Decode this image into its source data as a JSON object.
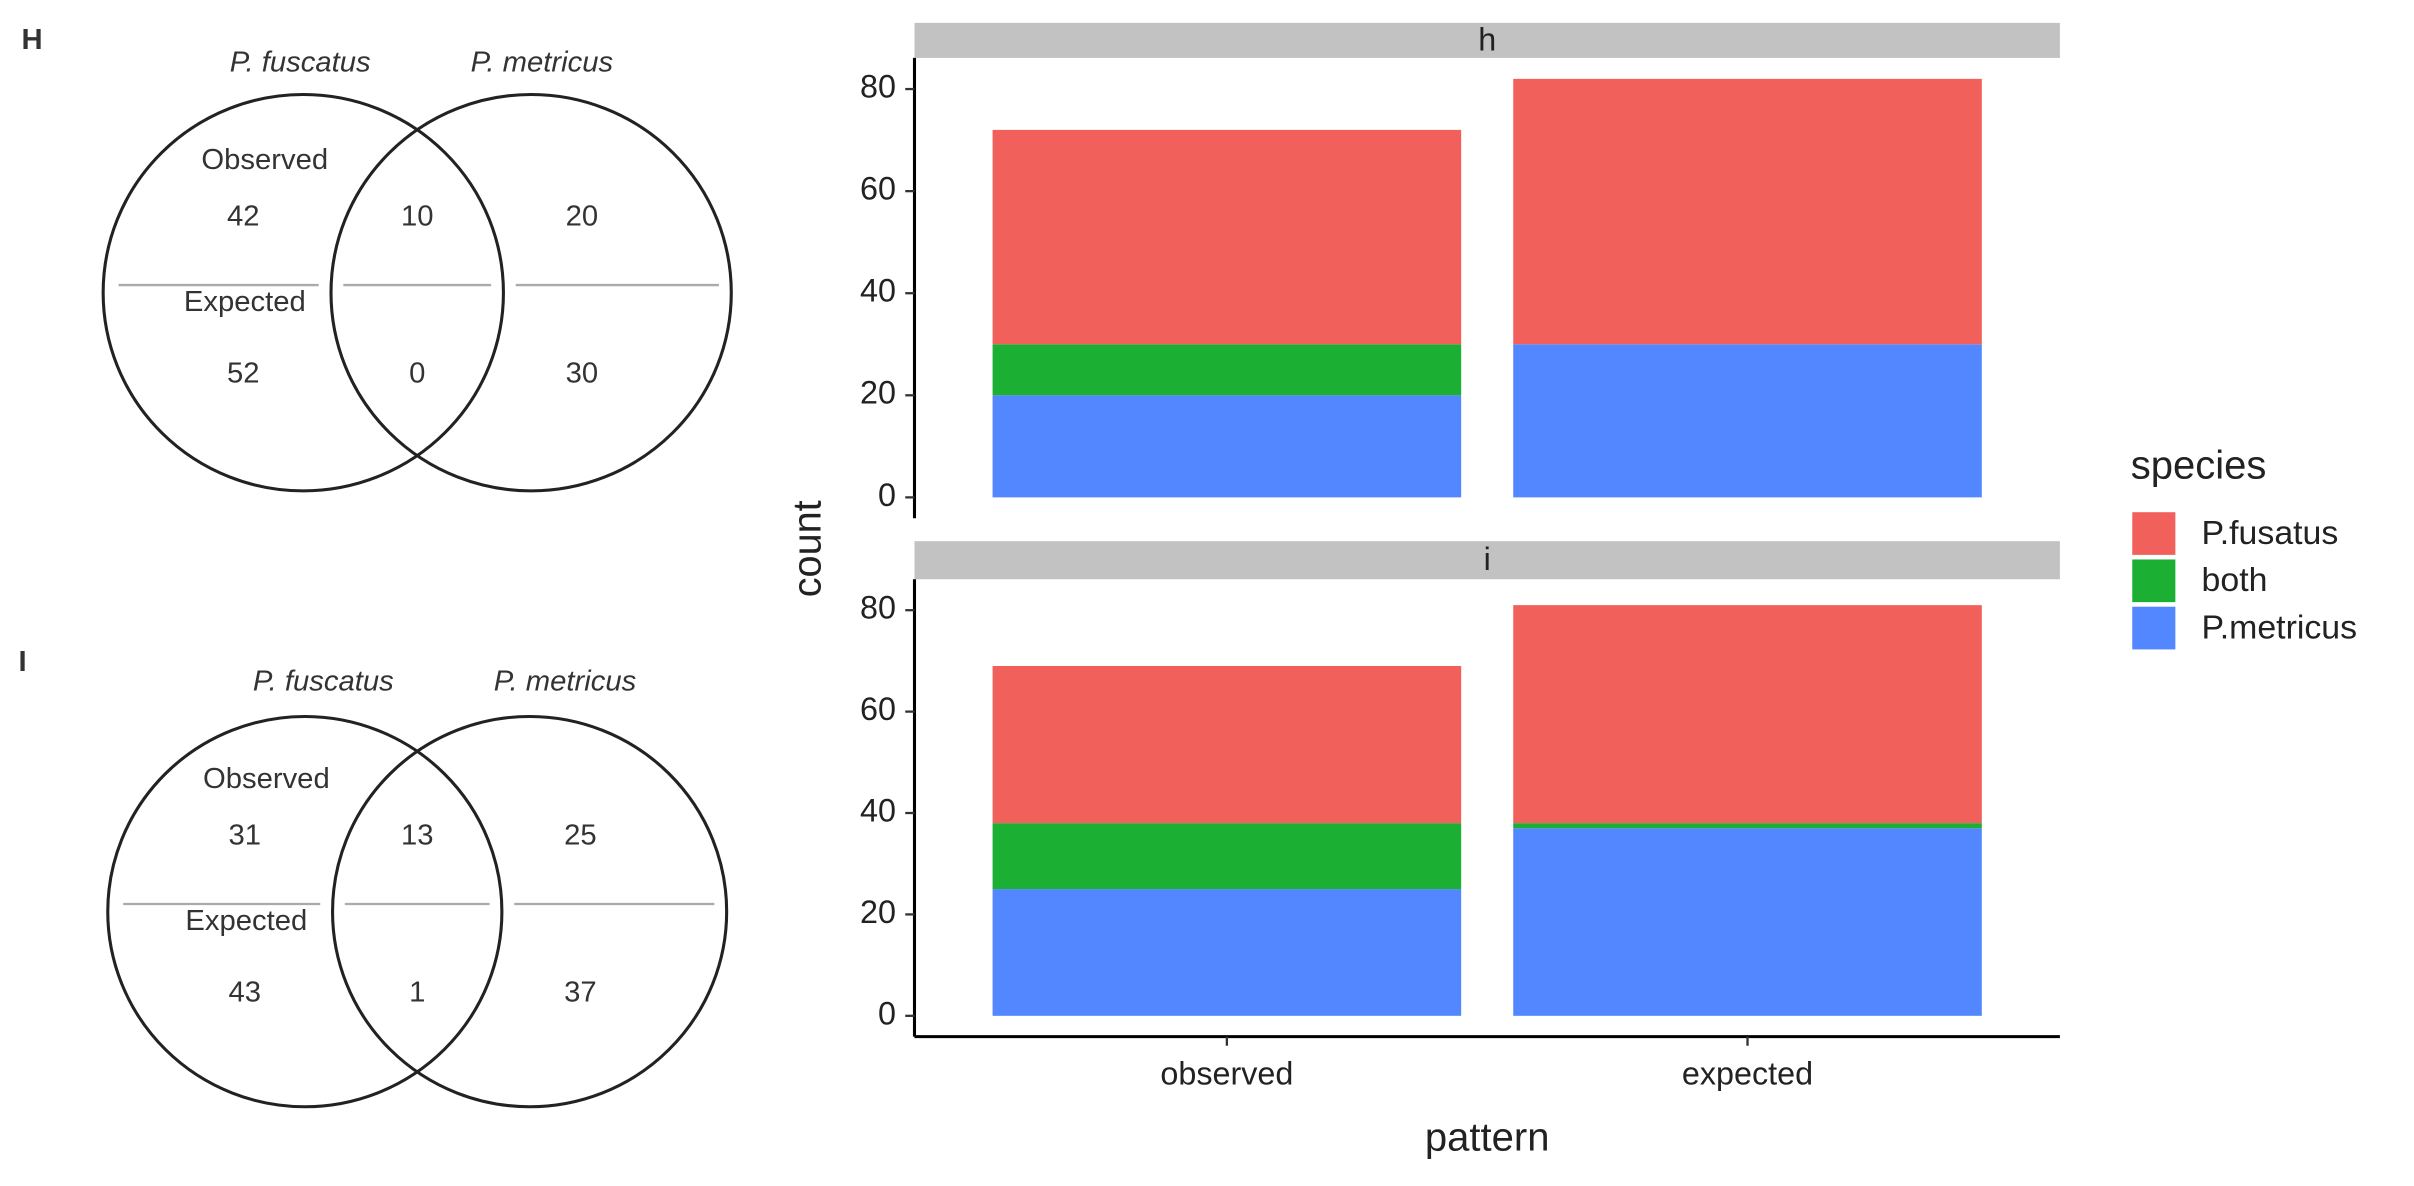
{
  "chart_data": [
    {
      "type": "venn",
      "panel_label": "H",
      "sets": [
        "P. fuscatus",
        "P. metricus"
      ],
      "row_labels": [
        "Observed",
        "Expected"
      ],
      "observed": [
        42,
        10,
        20
      ],
      "expected": [
        52,
        0,
        30
      ]
    },
    {
      "type": "venn",
      "panel_label": "I",
      "sets": [
        "P. fuscatus",
        "P. metricus"
      ],
      "row_labels": [
        "Observed",
        "Expected"
      ],
      "observed": [
        31,
        13,
        25
      ],
      "expected": [
        43,
        1,
        37
      ]
    },
    {
      "type": "bar",
      "stacked": true,
      "x_label": "pattern",
      "y_label": "count",
      "legend_title": "species",
      "facets": [
        "h",
        "i"
      ],
      "categories": [
        "observed",
        "expected"
      ],
      "ylim": [
        -4.1,
        86.1
      ],
      "yticks": [
        0,
        20,
        40,
        60,
        80
      ],
      "series": [
        {
          "name": "P.fusatus",
          "color": "#F2605C",
          "values": [
            [
              42,
              52
            ],
            [
              31,
              43
            ]
          ]
        },
        {
          "name": "both",
          "color": "#1BB034",
          "values": [
            [
              10,
              0
            ],
            [
              13,
              1
            ]
          ]
        },
        {
          "name": "P.metricus",
          "color": "#5287FF",
          "values": [
            [
              20,
              30
            ],
            [
              25,
              37
            ]
          ]
        }
      ]
    }
  ]
}
